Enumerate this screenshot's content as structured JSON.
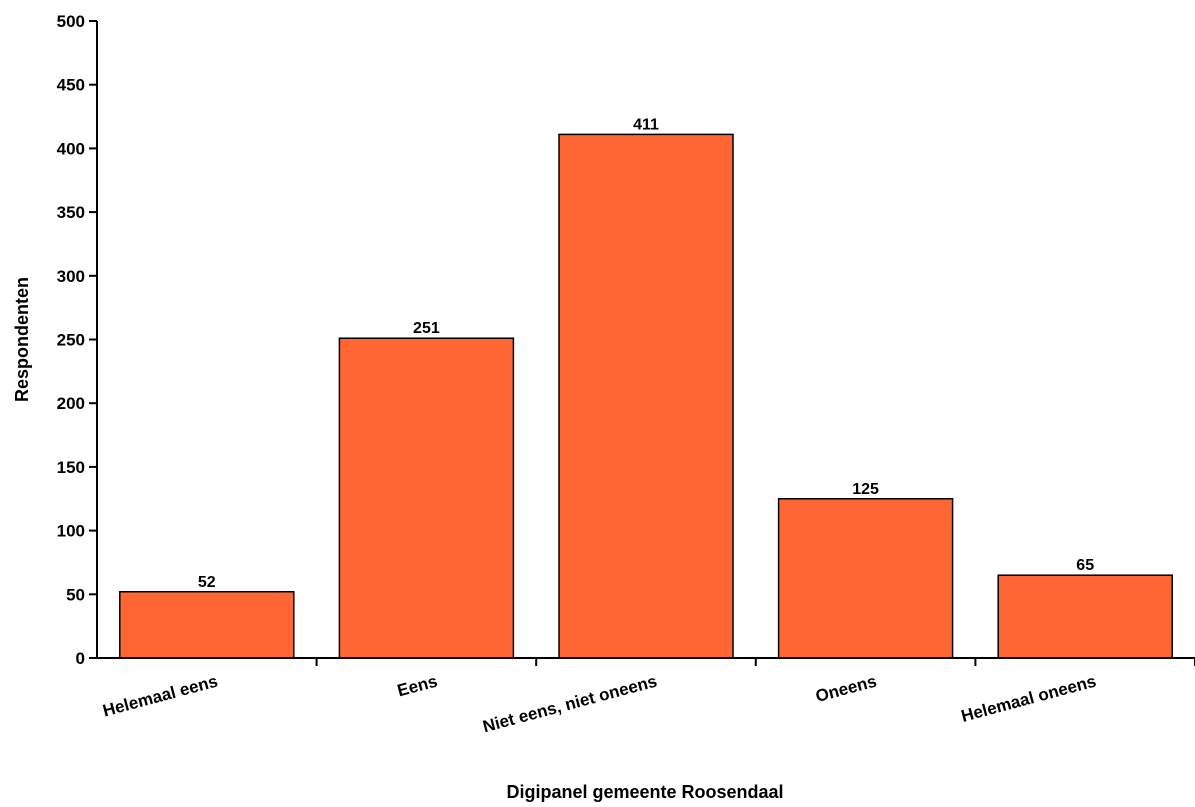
{
  "chart_data": {
    "type": "bar",
    "categories": [
      "Helemaal eens",
      "Eens",
      "Niet eens, niet oneens",
      "Oneens",
      "Helemaal oneens"
    ],
    "values": [
      52,
      251,
      411,
      125,
      65
    ],
    "xlabel": "Digipanel gemeente Roosendaal",
    "ylabel": "Respondenten",
    "ylim": [
      0,
      500
    ],
    "yticks": [
      0,
      50,
      100,
      150,
      200,
      250,
      300,
      350,
      400,
      450,
      500
    ],
    "bar_color": "#ff6633",
    "bar_edge_color": "#000000",
    "grid": false,
    "legend": false
  }
}
